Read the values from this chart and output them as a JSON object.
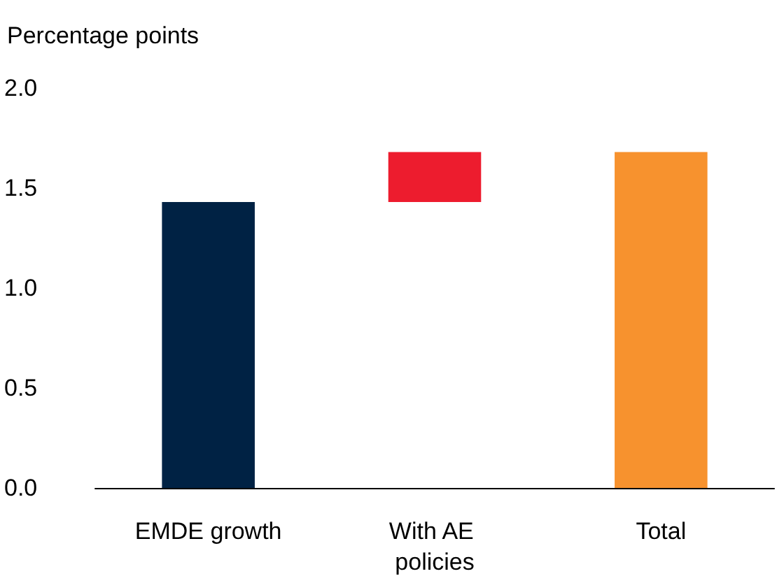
{
  "chart_data": {
    "type": "bar",
    "ylabel": "Percentage points",
    "categories": [
      "EMDE growth",
      "With AE policies",
      "Total"
    ],
    "values": [
      1.43,
      0.25,
      1.68
    ],
    "base": [
      0,
      1.43,
      0
    ],
    "colors": [
      "#002244",
      "#ed1c2e",
      "#f7922e"
    ],
    "ylim": [
      0,
      2
    ],
    "yticks": [
      {
        "value": 0,
        "label": "0.0"
      },
      {
        "value": 0.5,
        "label": "0.5"
      },
      {
        "value": 1,
        "label": "1.0"
      },
      {
        "value": 1.5,
        "label": "1.5"
      },
      {
        "value": 2,
        "label": "2.0"
      }
    ],
    "grid": false
  }
}
